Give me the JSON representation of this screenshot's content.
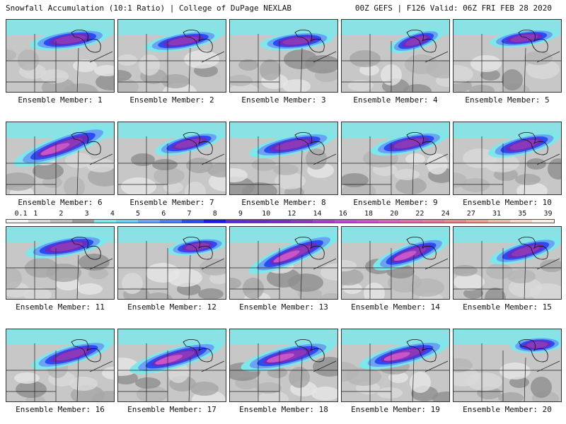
{
  "header": {
    "title": "Snowfall Accumulation (10:1 Ratio) | College of DuPage NEXLAB",
    "run_info": "00Z GEFS | F126 Valid: 06Z FRI FEB 28 2020"
  },
  "legend": {
    "ticks": [
      "0.1",
      "1",
      "2",
      "3",
      "4",
      "5",
      "6",
      "7",
      "8",
      "9",
      "10",
      "12",
      "14",
      "16",
      "18",
      "20",
      "22",
      "24",
      "27",
      "31",
      "35",
      "39"
    ],
    "colors": [
      "#f4f4f4",
      "#d8d8d8",
      "#bdbdbd",
      "#9a9a9a",
      "#7fe6e9",
      "#6ecbf2",
      "#6aa3f2",
      "#4d7ef3",
      "#2a4cf5",
      "#1a1ae6",
      "#5a2bd6",
      "#6a2cc0",
      "#7a2db8",
      "#8a3ab8",
      "#a043c4",
      "#b84ecf",
      "#c956c8",
      "#d564bf",
      "#dd6fa8",
      "#e07a99",
      "#e38a8c",
      "#e8a08c",
      "#efb9a4",
      "#f6d6c6",
      "#fbeee2"
    ]
  },
  "members": [
    {
      "label": "Ensemble Member: 1",
      "band": {
        "x": 90,
        "y": 28,
        "w": 60,
        "h": 14,
        "rot": -8
      },
      "core": 2
    },
    {
      "label": "Ensemble Member: 2",
      "band": {
        "x": 92,
        "y": 30,
        "w": 58,
        "h": 13,
        "rot": -10
      },
      "core": 2
    },
    {
      "label": "Ensemble Member: 3",
      "band": {
        "x": 95,
        "y": 30,
        "w": 55,
        "h": 13,
        "rot": -6
      },
      "core": 2
    },
    {
      "label": "Ensemble Member: 4",
      "band": {
        "x": 105,
        "y": 30,
        "w": 42,
        "h": 13,
        "rot": -18
      },
      "core": 2
    },
    {
      "label": "Ensemble Member: 5",
      "band": {
        "x": 100,
        "y": 26,
        "w": 52,
        "h": 12,
        "rot": -8
      },
      "core": 2
    },
    {
      "label": "Ensemble Member: 6",
      "band": {
        "x": 80,
        "y": 34,
        "w": 78,
        "h": 16,
        "rot": -20
      },
      "core": 3
    },
    {
      "label": "Ensemble Member: 7",
      "band": {
        "x": 100,
        "y": 30,
        "w": 52,
        "h": 13,
        "rot": -14
      },
      "core": 2
    },
    {
      "label": "Ensemble Member: 8",
      "band": {
        "x": 88,
        "y": 32,
        "w": 65,
        "h": 14,
        "rot": -12
      },
      "core": 2
    },
    {
      "label": "Ensemble Member: 9",
      "band": {
        "x": 95,
        "y": 30,
        "w": 58,
        "h": 14,
        "rot": -12
      },
      "core": 2
    },
    {
      "label": "Ensemble Member: 10",
      "band": {
        "x": 100,
        "y": 32,
        "w": 55,
        "h": 14,
        "rot": -14
      },
      "core": 2
    },
    {
      "label": "Ensemble Member: 11",
      "band": {
        "x": 85,
        "y": 28,
        "w": 62,
        "h": 14,
        "rot": -10
      },
      "core": 2
    },
    {
      "label": "Ensemble Member: 12",
      "band": {
        "x": 112,
        "y": 28,
        "w": 45,
        "h": 12,
        "rot": -8
      },
      "core": 2
    },
    {
      "label": "Ensemble Member: 13",
      "band": {
        "x": 90,
        "y": 38,
        "w": 72,
        "h": 15,
        "rot": -22
      },
      "core": 3
    },
    {
      "label": "Ensemble Member: 14",
      "band": {
        "x": 98,
        "y": 38,
        "w": 60,
        "h": 15,
        "rot": -20
      },
      "core": 3
    },
    {
      "label": "Ensemble Member: 15",
      "band": {
        "x": 102,
        "y": 34,
        "w": 55,
        "h": 14,
        "rot": -16
      },
      "core": 2
    },
    {
      "label": "Ensemble Member: 16",
      "band": {
        "x": 92,
        "y": 36,
        "w": 62,
        "h": 14,
        "rot": -16
      },
      "core": 2
    },
    {
      "label": "Ensemble Member: 17",
      "band": {
        "x": 82,
        "y": 40,
        "w": 72,
        "h": 15,
        "rot": -16
      },
      "core": 3
    },
    {
      "label": "Ensemble Member: 18",
      "band": {
        "x": 82,
        "y": 38,
        "w": 72,
        "h": 15,
        "rot": -14
      },
      "core": 3
    },
    {
      "label": "Ensemble Member: 19",
      "band": {
        "x": 88,
        "y": 36,
        "w": 68,
        "h": 15,
        "rot": -14
      },
      "core": 3
    },
    {
      "label": "Ensemble Member: 20",
      "band": {
        "x": 118,
        "y": 22,
        "w": 40,
        "h": 12,
        "rot": -4
      },
      "core": 1
    }
  ]
}
